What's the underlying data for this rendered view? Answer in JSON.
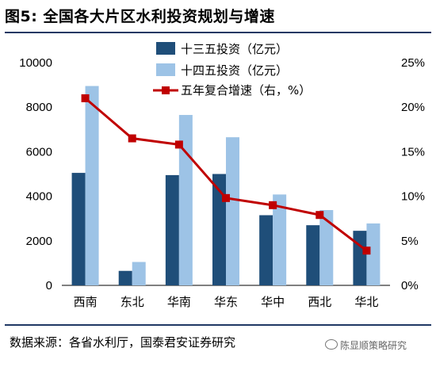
{
  "figure": {
    "title": "图5: 全国各大片区水利投资规划与增速",
    "source": "数据来源：各省水利厅，国泰君安证券研究",
    "watermark": "陈显顺策略研究"
  },
  "colors": {
    "series1": "#1f4e79",
    "series2": "#9dc3e6",
    "line": "#c00000"
  },
  "chart_data": {
    "type": "bar",
    "categories": [
      "西南",
      "东北",
      "华南",
      "华东",
      "华中",
      "西北",
      "华北"
    ],
    "series": [
      {
        "name": "十三五投资（亿元）",
        "type": "bar",
        "axis": "left",
        "values": [
          5050,
          650,
          4950,
          5000,
          3150,
          2700,
          2450
        ]
      },
      {
        "name": "十四五投资（亿元）",
        "type": "bar",
        "axis": "left",
        "values": [
          8950,
          1050,
          7650,
          6650,
          4080,
          3380,
          2780
        ]
      },
      {
        "name": "五年复合增速（右，%）",
        "type": "line",
        "axis": "right",
        "values": [
          21.0,
          16.5,
          15.8,
          9.8,
          9.0,
          7.9,
          3.9
        ]
      }
    ],
    "y_left": {
      "lim": [
        0,
        10000
      ],
      "ticks": [
        "0",
        "2000",
        "4000",
        "6000",
        "8000",
        "10000"
      ]
    },
    "y_right": {
      "lim": [
        0,
        25
      ],
      "ticks": [
        "0%",
        "5%",
        "10%",
        "15%",
        "20%",
        "25%"
      ]
    },
    "grid": false,
    "legend": "top-right"
  }
}
